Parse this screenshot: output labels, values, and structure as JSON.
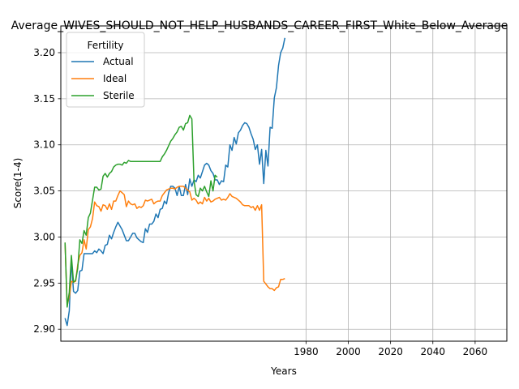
{
  "chart_data": {
    "type": "line",
    "title": "Average_WIVES_SHOULD_NOT_HELP_HUSBANDS_CAREER_FIRST_White_Below_Average",
    "xlabel": "Years",
    "ylabel": "Score(1-4)",
    "xlim": [
      1864,
      2075
    ],
    "ylim": [
      2.887,
      3.229
    ],
    "xticks": [
      1980,
      2000,
      2020,
      2040,
      2060
    ],
    "yticks": [
      2.9,
      2.95,
      3.0,
      3.05,
      3.1,
      3.15,
      3.2
    ],
    "grid": true,
    "legend": {
      "title": "Fertility",
      "placement": "upper-left"
    },
    "series": [
      {
        "name": "Actual",
        "color": "#1f77b4",
        "points": [
          [
            1866,
            2.912
          ],
          [
            1867,
            2.904
          ],
          [
            1868,
            2.92
          ],
          [
            1869,
            2.975
          ],
          [
            1870,
            2.941
          ],
          [
            1871,
            2.939
          ],
          [
            1872,
            2.942
          ],
          [
            1873,
            2.963
          ],
          [
            1874,
            2.964
          ],
          [
            1875,
            2.982
          ],
          [
            1876,
            2.982
          ],
          [
            1877,
            2.982
          ],
          [
            1878,
            2.982
          ],
          [
            1879,
            2.982
          ],
          [
            1880,
            2.985
          ],
          [
            1881,
            2.983
          ],
          [
            1882,
            2.987
          ],
          [
            1883,
            2.985
          ],
          [
            1884,
            2.982
          ],
          [
            1885,
            2.991
          ],
          [
            1886,
            2.992
          ],
          [
            1887,
            3.002
          ],
          [
            1888,
            2.998
          ],
          [
            1889,
            3.005
          ],
          [
            1890,
            3.011
          ],
          [
            1891,
            3.016
          ],
          [
            1892,
            3.012
          ],
          [
            1893,
            3.008
          ],
          [
            1894,
            3.002
          ],
          [
            1895,
            2.996
          ],
          [
            1896,
            2.996
          ],
          [
            1897,
            3.0
          ],
          [
            1898,
            3.004
          ],
          [
            1899,
            3.004
          ],
          [
            1900,
            2.999
          ],
          [
            1901,
            2.997
          ],
          [
            1902,
            2.995
          ],
          [
            1903,
            2.994
          ],
          [
            1904,
            3.009
          ],
          [
            1905,
            3.005
          ],
          [
            1906,
            3.014
          ],
          [
            1907,
            3.014
          ],
          [
            1908,
            3.017
          ],
          [
            1909,
            3.025
          ],
          [
            1910,
            3.021
          ],
          [
            1911,
            3.03
          ],
          [
            1912,
            3.031
          ],
          [
            1913,
            3.039
          ],
          [
            1914,
            3.036
          ],
          [
            1915,
            3.048
          ],
          [
            1916,
            3.055
          ],
          [
            1917,
            3.055
          ],
          [
            1918,
            3.053
          ],
          [
            1919,
            3.045
          ],
          [
            1920,
            3.055
          ],
          [
            1921,
            3.045
          ],
          [
            1922,
            3.045
          ],
          [
            1923,
            3.057
          ],
          [
            1924,
            3.046
          ],
          [
            1925,
            3.063
          ],
          [
            1926,
            3.055
          ],
          [
            1927,
            3.062
          ],
          [
            1928,
            3.06
          ],
          [
            1929,
            3.067
          ],
          [
            1930,
            3.064
          ],
          [
            1931,
            3.071
          ],
          [
            1932,
            3.078
          ],
          [
            1933,
            3.08
          ],
          [
            1934,
            3.078
          ],
          [
            1935,
            3.072
          ],
          [
            1936,
            3.069
          ],
          [
            1937,
            3.062
          ],
          [
            1938,
            3.062
          ],
          [
            1939,
            3.057
          ],
          [
            1940,
            3.061
          ],
          [
            1941,
            3.06
          ],
          [
            1942,
            3.078
          ],
          [
            1943,
            3.076
          ],
          [
            1944,
            3.1
          ],
          [
            1945,
            3.094
          ],
          [
            1946,
            3.108
          ],
          [
            1947,
            3.101
          ],
          [
            1948,
            3.113
          ],
          [
            1949,
            3.116
          ],
          [
            1950,
            3.121
          ],
          [
            1951,
            3.124
          ],
          [
            1952,
            3.123
          ],
          [
            1953,
            3.119
          ],
          [
            1954,
            3.112
          ],
          [
            1955,
            3.106
          ],
          [
            1956,
            3.095
          ],
          [
            1957,
            3.1
          ],
          [
            1958,
            3.079
          ],
          [
            1959,
            3.095
          ],
          [
            1960,
            3.058
          ],
          [
            1961,
            3.094
          ],
          [
            1962,
            3.077
          ],
          [
            1963,
            3.119
          ],
          [
            1964,
            3.118
          ],
          [
            1965,
            3.151
          ],
          [
            1966,
            3.162
          ],
          [
            1967,
            3.186
          ],
          [
            1968,
            3.2
          ],
          [
            1969,
            3.205
          ],
          [
            1970,
            3.216
          ]
        ]
      },
      {
        "name": "Ideal",
        "color": "#ff7f0e",
        "points": [
          [
            1866,
            2.994
          ],
          [
            1867,
            2.926
          ],
          [
            1868,
            2.935
          ],
          [
            1869,
            2.952
          ],
          [
            1870,
            2.951
          ],
          [
            1871,
            2.952
          ],
          [
            1872,
            2.97
          ],
          [
            1873,
            2.98
          ],
          [
            1874,
            2.983
          ],
          [
            1875,
            2.997
          ],
          [
            1876,
            2.987
          ],
          [
            1877,
            3.008
          ],
          [
            1878,
            3.011
          ],
          [
            1879,
            3.02
          ],
          [
            1880,
            3.038
          ],
          [
            1881,
            3.034
          ],
          [
            1882,
            3.033
          ],
          [
            1883,
            3.028
          ],
          [
            1884,
            3.035
          ],
          [
            1885,
            3.034
          ],
          [
            1886,
            3.03
          ],
          [
            1887,
            3.036
          ],
          [
            1888,
            3.03
          ],
          [
            1889,
            3.039
          ],
          [
            1890,
            3.039
          ],
          [
            1891,
            3.045
          ],
          [
            1892,
            3.05
          ],
          [
            1893,
            3.048
          ],
          [
            1894,
            3.046
          ],
          [
            1895,
            3.033
          ],
          [
            1896,
            3.039
          ],
          [
            1897,
            3.036
          ],
          [
            1898,
            3.035
          ],
          [
            1899,
            3.036
          ],
          [
            1900,
            3.031
          ],
          [
            1901,
            3.033
          ],
          [
            1902,
            3.032
          ],
          [
            1903,
            3.034
          ],
          [
            1904,
            3.04
          ],
          [
            1905,
            3.039
          ],
          [
            1906,
            3.04
          ],
          [
            1907,
            3.041
          ],
          [
            1908,
            3.036
          ],
          [
            1909,
            3.038
          ],
          [
            1910,
            3.039
          ],
          [
            1911,
            3.039
          ],
          [
            1912,
            3.045
          ],
          [
            1913,
            3.048
          ],
          [
            1914,
            3.051
          ],
          [
            1915,
            3.052
          ],
          [
            1916,
            3.053
          ],
          [
            1917,
            3.053
          ],
          [
            1918,
            3.052
          ],
          [
            1919,
            3.054
          ],
          [
            1920,
            3.055
          ],
          [
            1921,
            3.055
          ],
          [
            1922,
            3.055
          ],
          [
            1923,
            3.053
          ],
          [
            1924,
            3.051
          ],
          [
            1925,
            3.049
          ],
          [
            1926,
            3.04
          ],
          [
            1927,
            3.042
          ],
          [
            1928,
            3.04
          ],
          [
            1929,
            3.036
          ],
          [
            1930,
            3.038
          ],
          [
            1931,
            3.036
          ],
          [
            1932,
            3.043
          ],
          [
            1933,
            3.039
          ],
          [
            1934,
            3.042
          ],
          [
            1935,
            3.038
          ],
          [
            1936,
            3.039
          ],
          [
            1937,
            3.041
          ],
          [
            1938,
            3.042
          ],
          [
            1939,
            3.043
          ],
          [
            1940,
            3.04
          ],
          [
            1941,
            3.041
          ],
          [
            1942,
            3.04
          ],
          [
            1943,
            3.043
          ],
          [
            1944,
            3.047
          ],
          [
            1945,
            3.044
          ],
          [
            1946,
            3.043
          ],
          [
            1947,
            3.042
          ],
          [
            1948,
            3.04
          ],
          [
            1949,
            3.038
          ],
          [
            1950,
            3.035
          ],
          [
            1951,
            3.034
          ],
          [
            1952,
            3.034
          ],
          [
            1953,
            3.034
          ],
          [
            1954,
            3.032
          ],
          [
            1955,
            3.033
          ],
          [
            1956,
            3.029
          ],
          [
            1957,
            3.034
          ],
          [
            1958,
            3.029
          ],
          [
            1959,
            3.035
          ],
          [
            1960,
            2.952
          ],
          [
            1961,
            2.949
          ],
          [
            1962,
            2.946
          ],
          [
            1963,
            2.944
          ],
          [
            1964,
            2.944
          ],
          [
            1965,
            2.942
          ],
          [
            1966,
            2.945
          ],
          [
            1967,
            2.946
          ],
          [
            1968,
            2.954
          ],
          [
            1969,
            2.954
          ],
          [
            1970,
            2.955
          ]
        ]
      },
      {
        "name": "Sterile",
        "color": "#2ca02c",
        "points": [
          [
            1866,
            2.994
          ],
          [
            1867,
            2.924
          ],
          [
            1868,
            2.94
          ],
          [
            1869,
            2.98
          ],
          [
            1870,
            2.951
          ],
          [
            1871,
            2.953
          ],
          [
            1872,
            2.966
          ],
          [
            1873,
            2.997
          ],
          [
            1874,
            2.993
          ],
          [
            1875,
            3.007
          ],
          [
            1876,
            3.002
          ],
          [
            1877,
            3.021
          ],
          [
            1878,
            3.026
          ],
          [
            1879,
            3.04
          ],
          [
            1880,
            3.054
          ],
          [
            1881,
            3.054
          ],
          [
            1882,
            3.051
          ],
          [
            1883,
            3.052
          ],
          [
            1884,
            3.066
          ],
          [
            1885,
            3.069
          ],
          [
            1886,
            3.065
          ],
          [
            1887,
            3.069
          ],
          [
            1888,
            3.071
          ],
          [
            1889,
            3.076
          ],
          [
            1890,
            3.078
          ],
          [
            1891,
            3.079
          ],
          [
            1892,
            3.079
          ],
          [
            1893,
            3.078
          ],
          [
            1894,
            3.081
          ],
          [
            1895,
            3.08
          ],
          [
            1896,
            3.083
          ],
          [
            1897,
            3.082
          ],
          [
            1898,
            3.082
          ],
          [
            1899,
            3.082
          ],
          [
            1900,
            3.082
          ],
          [
            1901,
            3.082
          ],
          [
            1902,
            3.082
          ],
          [
            1903,
            3.082
          ],
          [
            1904,
            3.082
          ],
          [
            1905,
            3.082
          ],
          [
            1906,
            3.082
          ],
          [
            1907,
            3.082
          ],
          [
            1908,
            3.082
          ],
          [
            1909,
            3.082
          ],
          [
            1910,
            3.082
          ],
          [
            1911,
            3.082
          ],
          [
            1912,
            3.087
          ],
          [
            1913,
            3.09
          ],
          [
            1914,
            3.094
          ],
          [
            1915,
            3.099
          ],
          [
            1916,
            3.104
          ],
          [
            1917,
            3.107
          ],
          [
            1918,
            3.111
          ],
          [
            1919,
            3.114
          ],
          [
            1920,
            3.119
          ],
          [
            1921,
            3.12
          ],
          [
            1922,
            3.116
          ],
          [
            1923,
            3.123
          ],
          [
            1924,
            3.124
          ],
          [
            1925,
            3.132
          ],
          [
            1926,
            3.128
          ],
          [
            1927,
            3.061
          ],
          [
            1928,
            3.046
          ],
          [
            1929,
            3.044
          ],
          [
            1930,
            3.053
          ],
          [
            1931,
            3.05
          ],
          [
            1932,
            3.055
          ],
          [
            1933,
            3.049
          ],
          [
            1934,
            3.044
          ],
          [
            1935,
            3.061
          ],
          [
            1936,
            3.05
          ],
          [
            1937,
            3.067
          ],
          [
            1938,
            3.065
          ]
        ]
      }
    ]
  }
}
